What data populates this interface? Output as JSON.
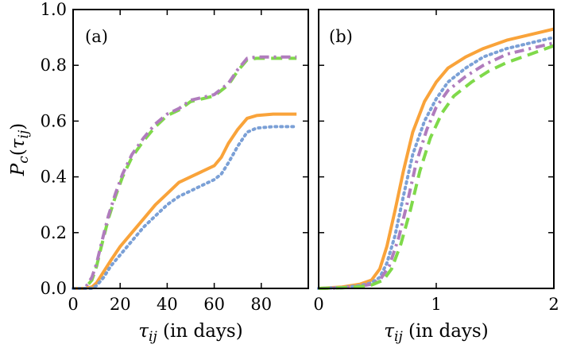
{
  "chart_data": [
    {
      "type": "line",
      "panel_label": "(a)",
      "xlabel_var": "τ",
      "xlabel_sub": "ij",
      "xlabel_suffix": " (in days)",
      "ylabel_var": "P",
      "ylabel_sub": "c",
      "ylabel_arg": "τ",
      "ylabel_arg_sub": "ij",
      "xlim": [
        0,
        100
      ],
      "ylim": [
        0,
        1.0
      ],
      "xticks": [
        0,
        20,
        40,
        60,
        80
      ],
      "xtick_labels": [
        "0",
        "20",
        "40",
        "60",
        "80"
      ],
      "yticks": [
        0.0,
        0.2,
        0.4,
        0.6,
        0.8,
        1.0
      ],
      "ytick_labels": [
        "0.0",
        "0.2",
        "0.4",
        "0.6",
        "0.8",
        "1.0"
      ],
      "grid": false,
      "series": [
        {
          "name": "green-dashed",
          "color": "#7fd94a",
          "style": "dashed",
          "x": [
            0,
            5,
            8,
            10,
            12,
            15,
            18,
            21,
            25,
            30,
            35,
            40,
            45,
            50,
            55,
            60,
            63,
            66,
            70,
            74,
            78,
            85,
            95
          ],
          "y": [
            0,
            0.0,
            0.03,
            0.08,
            0.15,
            0.25,
            0.33,
            0.4,
            0.47,
            0.53,
            0.58,
            0.62,
            0.64,
            0.67,
            0.68,
            0.69,
            0.71,
            0.73,
            0.78,
            0.82,
            0.825,
            0.825,
            0.825
          ]
        },
        {
          "name": "purple-dashdot",
          "color": "#b07cbd",
          "style": "dashdot",
          "x": [
            0,
            5,
            8,
            10,
            12,
            15,
            18,
            21,
            25,
            30,
            35,
            40,
            45,
            50,
            55,
            60,
            63,
            66,
            70,
            74,
            78,
            85,
            95
          ],
          "y": [
            0,
            0.0,
            0.04,
            0.09,
            0.16,
            0.26,
            0.34,
            0.41,
            0.48,
            0.54,
            0.59,
            0.625,
            0.645,
            0.675,
            0.685,
            0.695,
            0.715,
            0.735,
            0.785,
            0.825,
            0.83,
            0.83,
            0.83
          ]
        },
        {
          "name": "orange-solid",
          "color": "#f9a33a",
          "style": "solid",
          "x": [
            0,
            5,
            8,
            10,
            13,
            16,
            20,
            25,
            30,
            35,
            40,
            45,
            50,
            55,
            60,
            63,
            66,
            70,
            74,
            78,
            85,
            95
          ],
          "y": [
            0,
            0.0,
            0.005,
            0.02,
            0.06,
            0.1,
            0.15,
            0.2,
            0.25,
            0.3,
            0.34,
            0.38,
            0.4,
            0.42,
            0.44,
            0.47,
            0.52,
            0.57,
            0.61,
            0.62,
            0.625,
            0.625
          ]
        },
        {
          "name": "blue-dotted",
          "color": "#7ba0d6",
          "style": "dotted",
          "x": [
            0,
            5,
            8,
            10,
            13,
            16,
            20,
            25,
            30,
            35,
            40,
            45,
            50,
            55,
            60,
            63,
            66,
            70,
            74,
            78,
            85,
            95
          ],
          "y": [
            0,
            0.0,
            0.0,
            0.01,
            0.04,
            0.08,
            0.12,
            0.17,
            0.22,
            0.26,
            0.3,
            0.33,
            0.35,
            0.37,
            0.39,
            0.41,
            0.45,
            0.51,
            0.56,
            0.575,
            0.58,
            0.58
          ]
        }
      ]
    },
    {
      "type": "line",
      "panel_label": "(b)",
      "xlabel_var": "τ",
      "xlabel_sub": "ij",
      "xlabel_suffix": " (in days)",
      "xlim": [
        0,
        2
      ],
      "ylim": [
        0,
        1.0
      ],
      "xticks": [
        0,
        1,
        2
      ],
      "xtick_labels": [
        "0",
        "1",
        "2"
      ],
      "yticks": [
        0.0,
        0.2,
        0.4,
        0.6,
        0.8,
        1.0
      ],
      "grid": false,
      "series": [
        {
          "name": "orange-solid",
          "color": "#f9a33a",
          "style": "solid",
          "x": [
            0,
            0.2,
            0.35,
            0.45,
            0.52,
            0.58,
            0.65,
            0.72,
            0.8,
            0.9,
            1.0,
            1.1,
            1.25,
            1.4,
            1.6,
            1.8,
            2.0
          ],
          "y": [
            0,
            0.005,
            0.015,
            0.03,
            0.07,
            0.15,
            0.28,
            0.42,
            0.56,
            0.67,
            0.74,
            0.79,
            0.83,
            0.86,
            0.89,
            0.91,
            0.93
          ]
        },
        {
          "name": "blue-dotted",
          "color": "#7ba0d6",
          "style": "dotted",
          "x": [
            0,
            0.2,
            0.35,
            0.45,
            0.52,
            0.58,
            0.65,
            0.72,
            0.8,
            0.9,
            1.0,
            1.1,
            1.25,
            1.4,
            1.6,
            1.8,
            2.0
          ],
          "y": [
            0,
            0.003,
            0.01,
            0.02,
            0.04,
            0.09,
            0.19,
            0.33,
            0.48,
            0.6,
            0.68,
            0.74,
            0.79,
            0.83,
            0.86,
            0.88,
            0.9
          ]
        },
        {
          "name": "purple-dashdot",
          "color": "#b07cbd",
          "style": "dashdot",
          "x": [
            0,
            0.2,
            0.35,
            0.45,
            0.52,
            0.6,
            0.68,
            0.75,
            0.83,
            0.92,
            1.0,
            1.1,
            1.25,
            1.4,
            1.6,
            1.8,
            2.0
          ],
          "y": [
            0,
            0.002,
            0.008,
            0.015,
            0.03,
            0.08,
            0.18,
            0.3,
            0.45,
            0.57,
            0.65,
            0.71,
            0.76,
            0.8,
            0.84,
            0.86,
            0.88
          ]
        },
        {
          "name": "green-dashed",
          "color": "#7fd94a",
          "style": "dashed",
          "x": [
            0,
            0.2,
            0.35,
            0.45,
            0.55,
            0.62,
            0.7,
            0.78,
            0.86,
            0.95,
            1.05,
            1.15,
            1.3,
            1.45,
            1.6,
            1.8,
            2.0
          ],
          "y": [
            0,
            0.002,
            0.006,
            0.012,
            0.03,
            0.07,
            0.16,
            0.28,
            0.42,
            0.54,
            0.63,
            0.69,
            0.74,
            0.78,
            0.81,
            0.84,
            0.87
          ]
        }
      ]
    }
  ]
}
